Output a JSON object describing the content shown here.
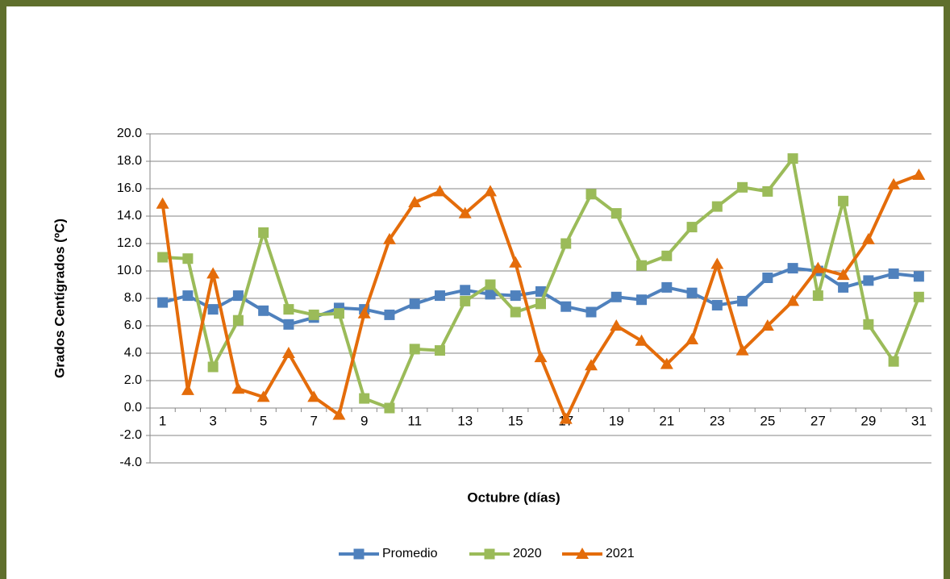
{
  "chart_data": {
    "type": "line",
    "ylabel": "Grados Centígrados (ºC)",
    "xlabel": "Octubre (días)",
    "categories": [
      "1",
      null,
      "3",
      null,
      "5",
      null,
      "7",
      null,
      "9",
      null,
      "11",
      null,
      "13",
      null,
      "15",
      null,
      "17",
      null,
      "19",
      null,
      "21",
      null,
      "23",
      null,
      "25",
      null,
      "27",
      null,
      "29",
      null,
      "31"
    ],
    "series": [
      {
        "name": "Promedio",
        "color": "#4f81bd",
        "marker": "square",
        "values": [
          7.7,
          8.2,
          7.2,
          8.2,
          7.1,
          6.1,
          6.6,
          7.3,
          7.2,
          6.8,
          7.6,
          8.2,
          8.6,
          8.3,
          8.2,
          8.5,
          7.4,
          7.0,
          8.1,
          7.9,
          8.8,
          8.4,
          7.5,
          7.8,
          9.5,
          10.2,
          10.0,
          8.8,
          9.3,
          9.8,
          9.6
        ]
      },
      {
        "name": "2020",
        "color": "#9bbb59",
        "marker": "square",
        "values": [
          11.0,
          10.9,
          3.0,
          6.4,
          12.8,
          7.2,
          6.8,
          6.9,
          0.7,
          0.0,
          4.3,
          4.2,
          7.8,
          9.0,
          7.0,
          7.6,
          12.0,
          15.6,
          14.2,
          10.4,
          11.1,
          13.2,
          14.7,
          16.1,
          15.8,
          18.2,
          8.2,
          15.1,
          6.1,
          3.4,
          8.1
        ]
      },
      {
        "name": "2021",
        "color": "#e46c0a",
        "marker": "triangle",
        "values": [
          14.9,
          1.3,
          9.8,
          1.4,
          0.8,
          4.0,
          0.8,
          -0.5,
          6.9,
          12.3,
          15.0,
          15.8,
          14.2,
          15.8,
          10.6,
          3.7,
          -0.8,
          3.1,
          6.0,
          4.9,
          3.2,
          5.0,
          10.5,
          4.2,
          6.0,
          7.8,
          10.2,
          9.7,
          12.3,
          16.3,
          17.0
        ]
      }
    ],
    "ylim": [
      -4,
      20
    ],
    "yticks": [
      {
        "value": -4,
        "label": "-4.0"
      },
      {
        "value": -2,
        "label": "-2.0"
      },
      {
        "value": 0,
        "label": "0.0"
      },
      {
        "value": 2,
        "label": "2.0"
      },
      {
        "value": 4,
        "label": "4.0"
      },
      {
        "value": 6,
        "label": "6.0"
      },
      {
        "value": 8,
        "label": "8.0"
      },
      {
        "value": 10,
        "label": "10.0"
      },
      {
        "value": 12,
        "label": "12.0"
      },
      {
        "value": 14,
        "label": "14.0"
      },
      {
        "value": 16,
        "label": "16.0"
      },
      {
        "value": 18,
        "label": "18.0"
      },
      {
        "value": 20,
        "label": "20.0"
      }
    ],
    "grid": true,
    "legend": "bottom"
  }
}
